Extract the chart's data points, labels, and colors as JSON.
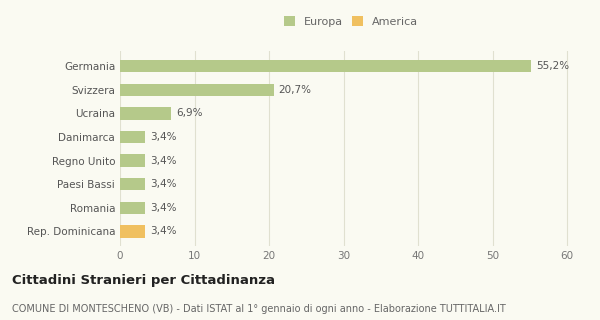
{
  "categories": [
    "Rep. Dominicana",
    "Romania",
    "Paesi Bassi",
    "Regno Unito",
    "Danimarca",
    "Ucraina",
    "Svizzera",
    "Germania"
  ],
  "values": [
    3.4,
    3.4,
    3.4,
    3.4,
    3.4,
    6.9,
    20.7,
    55.2
  ],
  "labels": [
    "3,4%",
    "3,4%",
    "3,4%",
    "3,4%",
    "3,4%",
    "6,9%",
    "20,7%",
    "55,2%"
  ],
  "colors": [
    "#f0c060",
    "#b5c98a",
    "#b5c98a",
    "#b5c98a",
    "#b5c98a",
    "#b5c98a",
    "#b5c98a",
    "#b5c98a"
  ],
  "legend_items": [
    {
      "label": "Europa",
      "color": "#b5c98a"
    },
    {
      "label": "America",
      "color": "#f0c060"
    }
  ],
  "xlim": [
    0,
    62
  ],
  "xticks": [
    0,
    10,
    20,
    30,
    40,
    50,
    60
  ],
  "title": "Cittadini Stranieri per Cittadinanza",
  "subtitle": "COMUNE DI MONTESCHENO (VB) - Dati ISTAT al 1° gennaio di ogni anno - Elaborazione TUTTITALIA.IT",
  "bg_color": "#fafaf2",
  "grid_color": "#e0e0d0",
  "bar_height": 0.52,
  "title_fontsize": 9.5,
  "subtitle_fontsize": 7,
  "label_fontsize": 7.5,
  "ytick_fontsize": 7.5,
  "xtick_fontsize": 7.5,
  "legend_fontsize": 8
}
